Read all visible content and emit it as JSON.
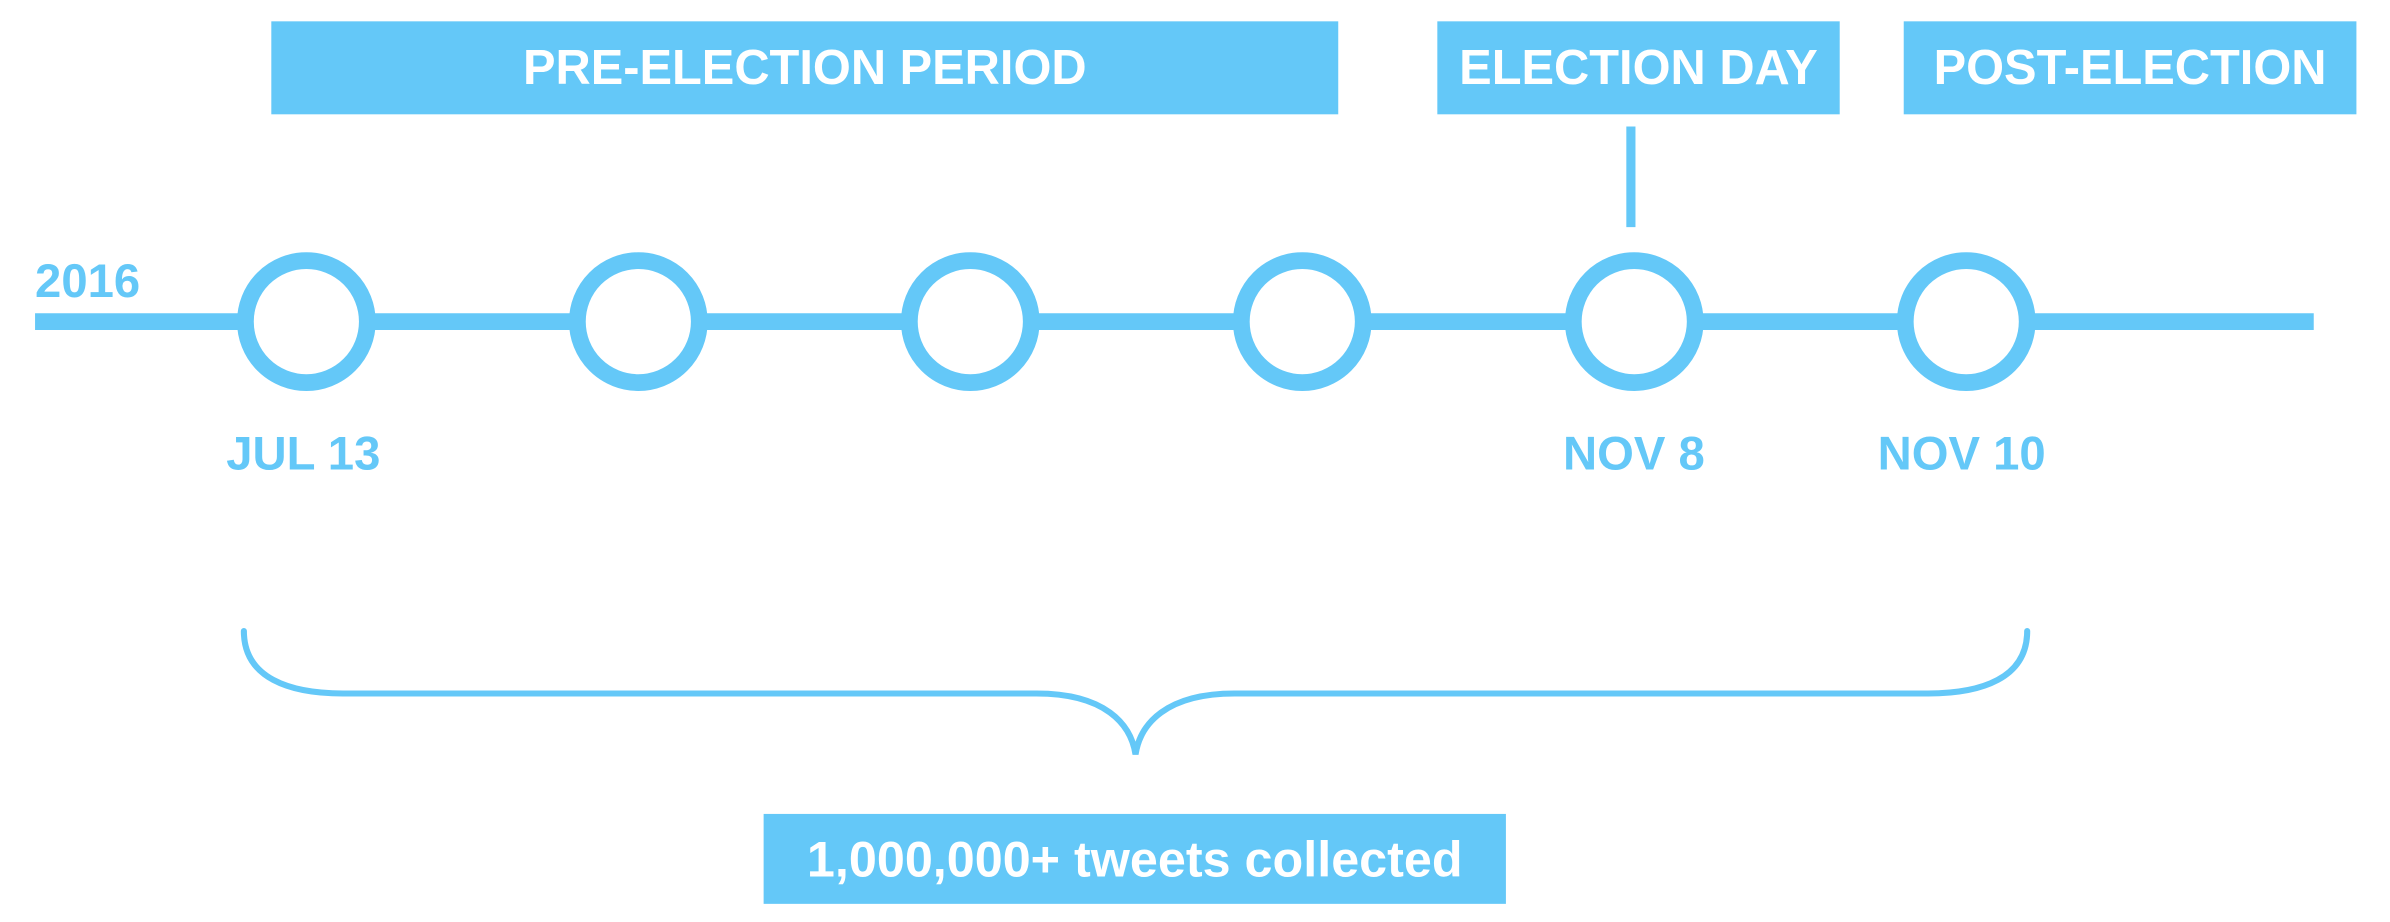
{
  "colors": {
    "accent": "#64c8f8",
    "text_on_accent": "#ffffff",
    "background": "#ffffff"
  },
  "periods": {
    "pre_election": "PRE-ELECTION PERIOD",
    "election_day": "ELECTION DAY",
    "post_election": "POST-ELECTION"
  },
  "timeline": {
    "year": "2016",
    "milestone_count": 6,
    "dates": {
      "start": "JUL 13",
      "election": "NOV 8",
      "end": "NOV 10"
    }
  },
  "summary": {
    "text": "1,000,000+ tweets collected"
  }
}
